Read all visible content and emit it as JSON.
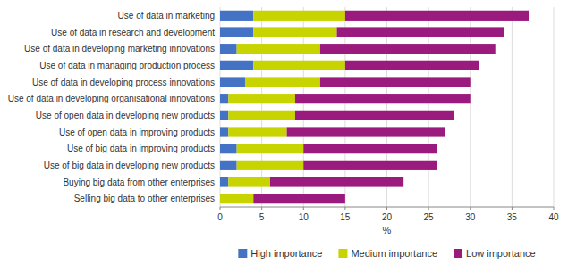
{
  "chart_data": {
    "type": "bar",
    "orientation": "horizontal",
    "stacked": true,
    "categories": [
      "Selling big data to other enterprises",
      "Buying big data from other enterprises",
      "Use of big data in developing new products",
      "Use of big data in improving products",
      "Use of open data in improving products",
      "Use of open data in developing new products",
      "Use of data in developing organisational innovations",
      "Use of data in developing process innovations",
      "Use of data in managing production process",
      "Use of data in developing marketing innovations",
      "Use of data in research and development",
      "Use of data in marketing"
    ],
    "series": [
      {
        "name": "High importance",
        "color": "#4472c4",
        "values": [
          0,
          1,
          2,
          2,
          1,
          1,
          1,
          3,
          4,
          2,
          4,
          4
        ]
      },
      {
        "name": "Medium importance",
        "color": "#c8d400",
        "values": [
          4,
          5,
          8,
          8,
          7,
          8,
          8,
          9,
          11,
          10,
          10,
          11
        ]
      },
      {
        "name": "Low importance",
        "color": "#9b1a7e",
        "values": [
          11,
          16,
          16,
          16,
          19,
          19,
          21,
          18,
          16,
          21,
          20,
          22
        ]
      }
    ],
    "xlim": [
      0,
      40
    ],
    "xticks": [
      0,
      5,
      10,
      15,
      20,
      25,
      30,
      35,
      40
    ],
    "x_label": "%",
    "grid": true,
    "legend": "bottom"
  }
}
